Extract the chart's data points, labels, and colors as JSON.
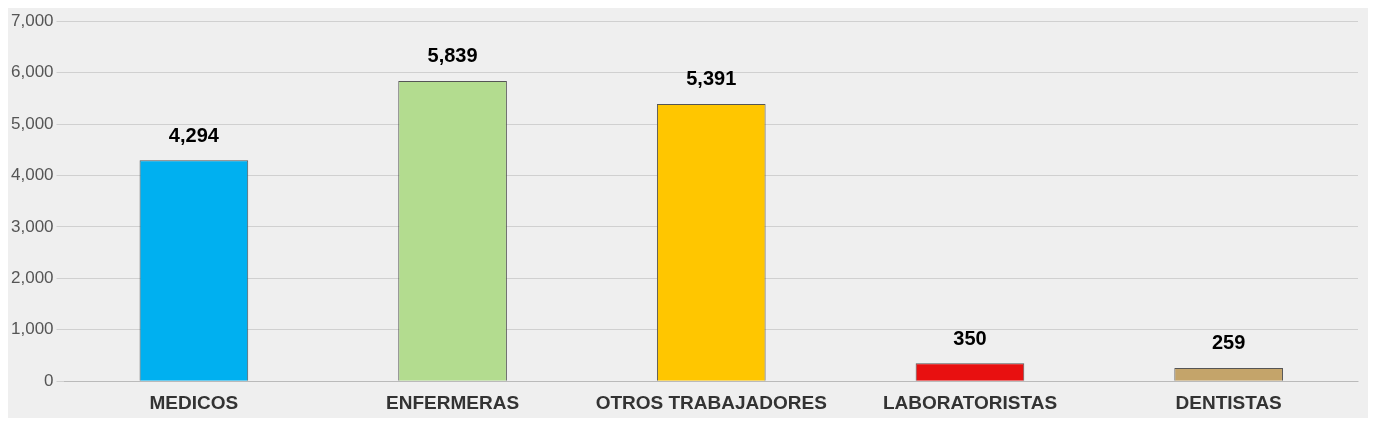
{
  "chart_data": {
    "type": "bar",
    "categories": [
      "MEDICOS",
      "ENFERMERAS",
      "OTROS TRABAJADORES",
      "LABORATORISTAS",
      "DENTISTAS"
    ],
    "values": [
      4294,
      5839,
      5391,
      350,
      259
    ],
    "colors": [
      "#00b0f0",
      "#b3dc8f",
      "#ffc600",
      "#e81010",
      "#c4a46a"
    ],
    "value_labels": [
      "4,294",
      "5,839",
      "5,391",
      "350",
      "259"
    ],
    "ylim": [
      0,
      7000
    ],
    "yticks": [
      {
        "value": 0,
        "label": "0"
      },
      {
        "value": 1000,
        "label": "1,000"
      },
      {
        "value": 2000,
        "label": "2,000"
      },
      {
        "value": 3000,
        "label": "3,000"
      },
      {
        "value": 4000,
        "label": "4,000"
      },
      {
        "value": 5000,
        "label": "5,000"
      },
      {
        "value": 6000,
        "label": "6,000"
      },
      {
        "value": 7000,
        "label": "7,000"
      }
    ],
    "grid": "y",
    "legend": false
  }
}
